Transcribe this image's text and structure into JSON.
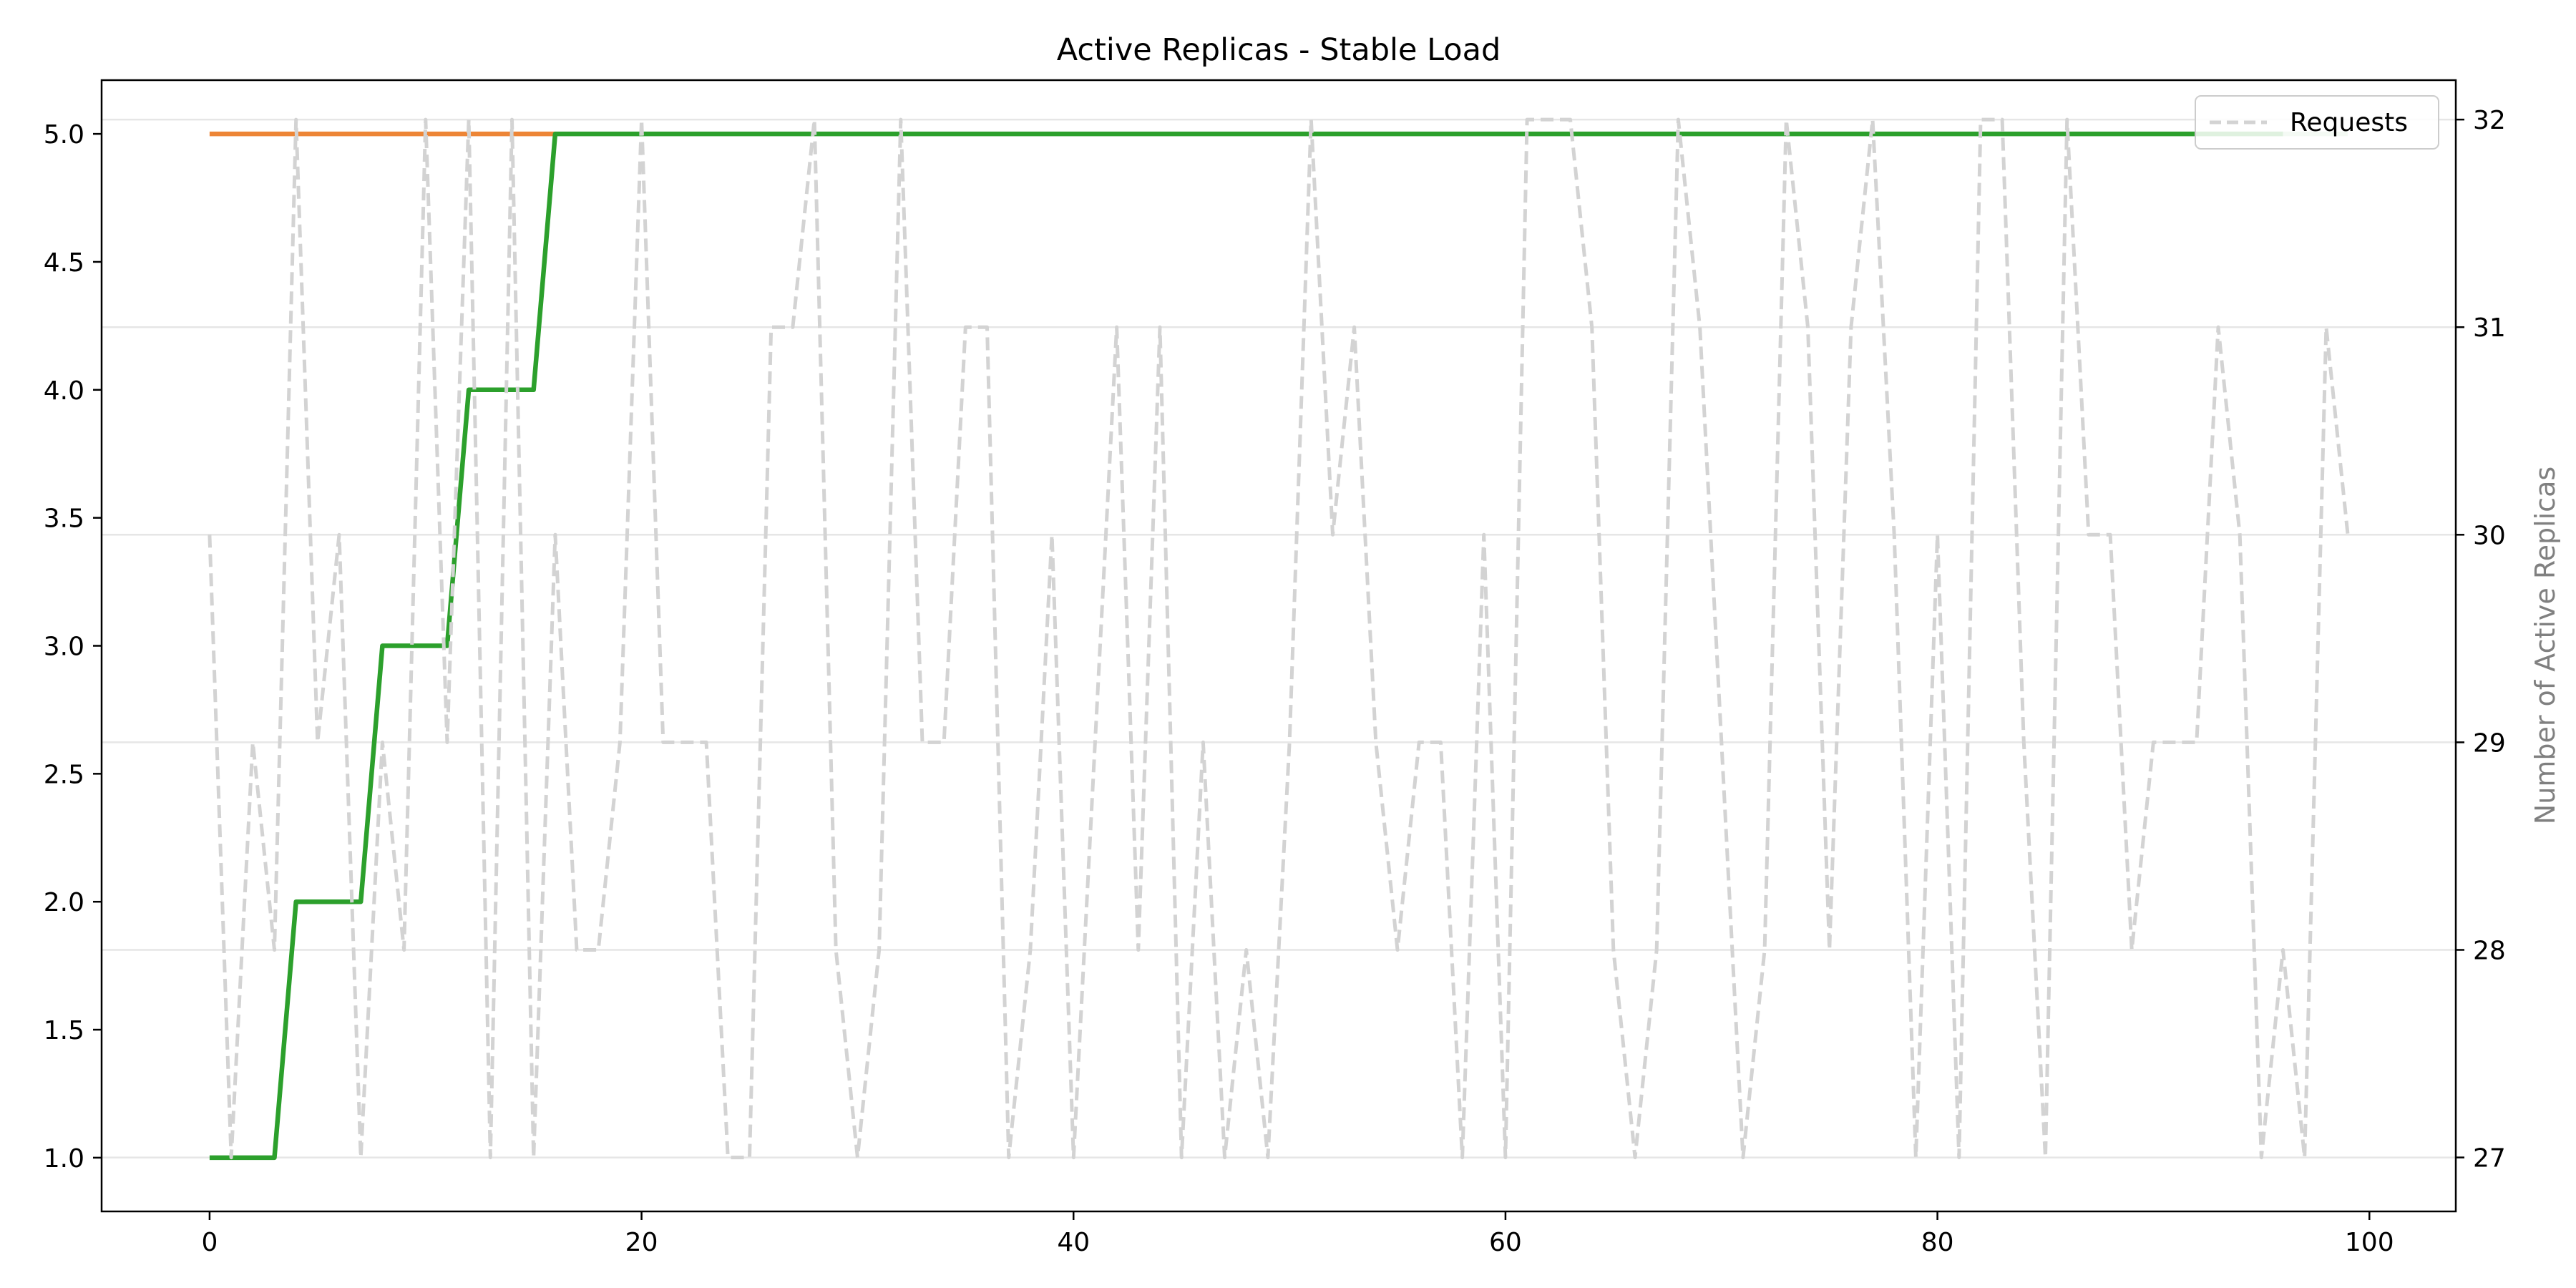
{
  "chart_data": {
    "type": "line",
    "title": "Active Replicas - Stable Load",
    "xlabel": "",
    "ylabel": "",
    "y2label": "Number of Active Replicas",
    "xlim": [
      -5,
      104
    ],
    "ylim": [
      0.79,
      5.21
    ],
    "y2lim": [
      26.74,
      32.19
    ],
    "xticks": [
      0,
      20,
      40,
      60,
      80,
      100
    ],
    "yticks": [
      1.0,
      1.5,
      2.0,
      2.5,
      3.0,
      3.5,
      4.0,
      4.5,
      5.0
    ],
    "y2ticks": [
      27,
      28,
      29,
      30,
      31,
      32
    ],
    "grid": "right-axis-horizontal",
    "legend_position": "top-right",
    "series": [
      {
        "axis": "left",
        "color": "#ed8536",
        "style": "solid",
        "x": [
          0,
          16
        ],
        "values": [
          5,
          5
        ]
      },
      {
        "axis": "left",
        "color": "#2ca02c",
        "style": "solid",
        "step": true,
        "x": [
          0,
          3,
          4,
          7,
          8,
          11,
          12,
          15,
          16,
          96
        ],
        "values": [
          1,
          1,
          2,
          2,
          3,
          3,
          4,
          4,
          5,
          5
        ]
      },
      {
        "name": "Requests",
        "axis": "right",
        "color": "#d3d3d3",
        "style": "dashed",
        "x": [
          0,
          1,
          2,
          3,
          4,
          5,
          6,
          7,
          8,
          9,
          10,
          11,
          12,
          13,
          14,
          15,
          16,
          17,
          18,
          19,
          20,
          21,
          22,
          23,
          24,
          25,
          26,
          27,
          28,
          29,
          30,
          31,
          32,
          33,
          34,
          35,
          36,
          37,
          38,
          39,
          40,
          41,
          42,
          43,
          44,
          45,
          46,
          47,
          48,
          49,
          50,
          51,
          52,
          53,
          54,
          55,
          56,
          57,
          58,
          59,
          60,
          61,
          62,
          63,
          64,
          65,
          66,
          67,
          68,
          69,
          70,
          71,
          72,
          73,
          74,
          75,
          76,
          77,
          78,
          79,
          80,
          81,
          82,
          83,
          84,
          85,
          86,
          87,
          88,
          89,
          90,
          91,
          92,
          93,
          94,
          95,
          96,
          97,
          98,
          99
        ],
        "values": [
          30,
          27,
          29,
          28,
          32,
          29,
          30,
          27,
          29,
          28,
          32,
          29,
          32,
          27,
          32,
          27,
          30,
          28,
          28,
          29,
          32,
          29,
          29,
          29,
          27,
          27,
          31,
          31,
          32,
          28,
          27,
          28,
          32,
          29,
          29,
          31,
          31,
          27,
          28,
          30,
          27,
          29,
          31,
          28,
          31,
          27,
          29,
          27,
          28,
          27,
          29,
          32,
          30,
          31,
          29,
          28,
          29,
          29,
          27,
          30,
          27,
          32,
          32,
          32,
          31,
          28,
          27,
          28,
          32,
          31,
          29,
          27,
          28,
          32,
          31,
          28,
          31,
          32,
          30,
          27,
          30,
          27,
          32,
          32,
          29,
          27,
          32,
          30,
          30,
          28,
          29,
          29,
          29,
          31,
          30,
          27,
          28,
          27,
          31,
          30
        ]
      },
      {
        "axis": "left",
        "color": "#2ca02c",
        "style": "solid",
        "fade": true,
        "x": [
          96,
          99
        ],
        "values": [
          5,
          5
        ]
      }
    ]
  }
}
